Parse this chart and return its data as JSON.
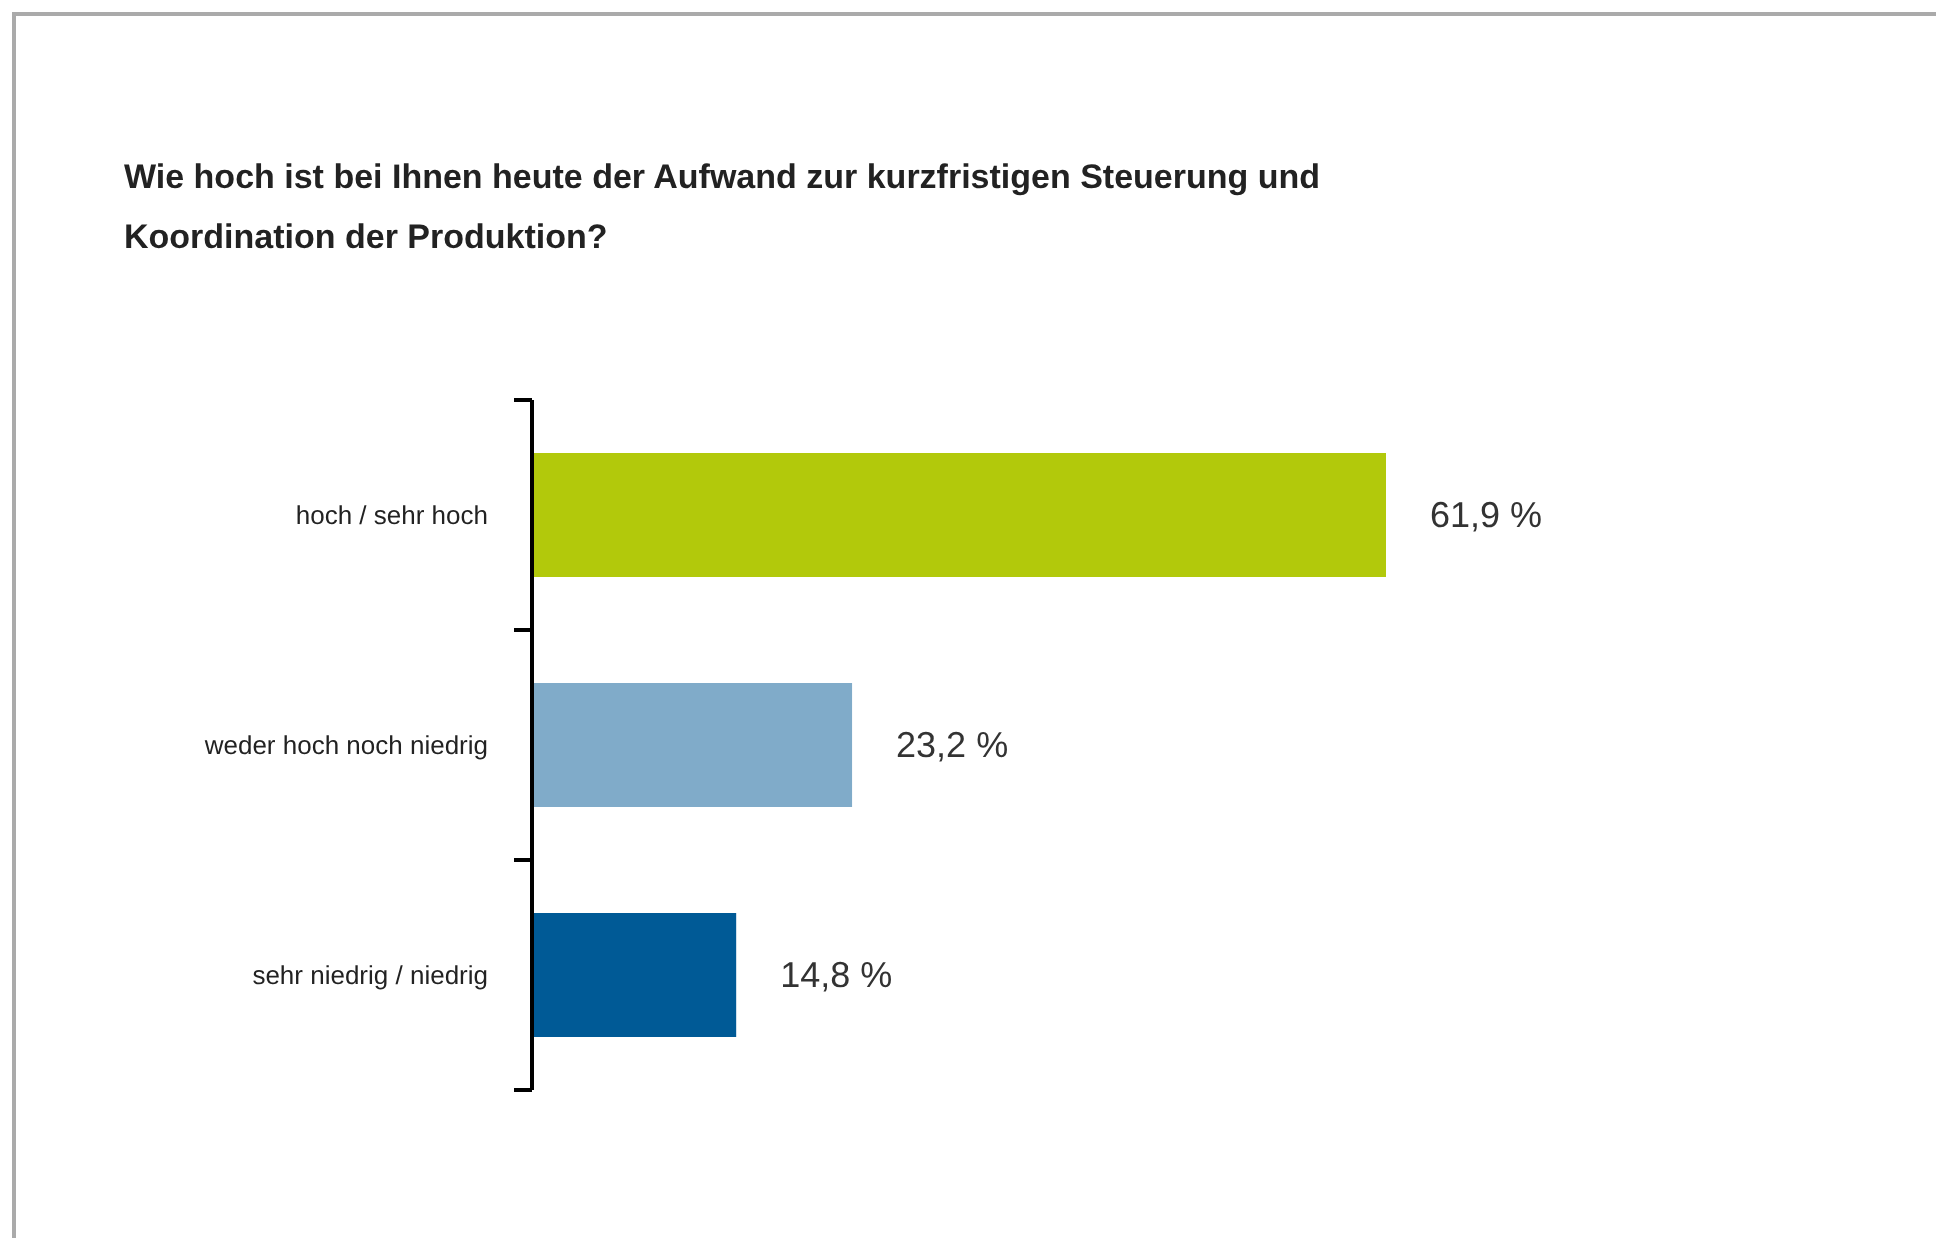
{
  "chart_data": {
    "type": "bar",
    "orientation": "horizontal",
    "title": "Wie hoch ist bei Ihnen heute der Aufwand zur kurzfristigen Steuerung und Koordination der Produktion?",
    "categories": [
      "hoch / sehr hoch",
      "weder hoch noch niedrig",
      "sehr niedrig / niedrig"
    ],
    "values": [
      61.9,
      23.2,
      14.8
    ],
    "colors": [
      "#b2c90b",
      "#80abc9",
      "#005a96"
    ],
    "value_labels": [
      "61,9 %",
      "23,2 %",
      "14,8 %"
    ],
    "data_labels": false
  }
}
